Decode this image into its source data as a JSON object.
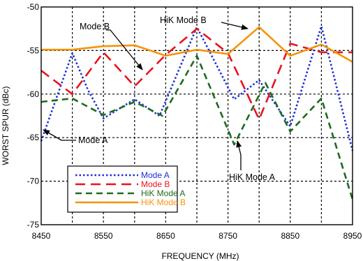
{
  "chart_data": {
    "type": "line",
    "title": "",
    "xlabel": "FREQUENCY (MHz)",
    "ylabel": "WORST SPUR (dBc)",
    "xlim": [
      8450,
      8950
    ],
    "ylim": [
      -75,
      -50
    ],
    "xticks": [
      8450,
      8550,
      8650,
      8750,
      8850,
      8950
    ],
    "yticks": [
      -50,
      -55,
      -60,
      -65,
      -70,
      -75
    ],
    "grid": true,
    "legend_position": "bottom-left",
    "series": [
      {
        "name": "Mode A",
        "color": "#1a2fd6",
        "dash": "dotted",
        "x": [
          8450,
          8500,
          8525,
          8550,
          8600,
          8640,
          8700,
          8760,
          8800,
          8850,
          8900,
          8950
        ],
        "y": [
          -65.4,
          -55.3,
          -59.5,
          -62.8,
          -60.6,
          -62.5,
          -52.3,
          -60.6,
          -58.4,
          -63.7,
          -52.2,
          -66.5
        ]
      },
      {
        "name": "Mode B",
        "color": "#e8141c",
        "dash": "dashed",
        "x": [
          8450,
          8500,
          8550,
          8600,
          8650,
          8700,
          8750,
          8800,
          8850,
          8900,
          8950
        ],
        "y": [
          -57.3,
          -60.0,
          -55.2,
          -59.1,
          -55.5,
          -52.5,
          -55.3,
          -62.9,
          -54.2,
          -55.2,
          -55.2
        ]
      },
      {
        "name": "HiK Mode A",
        "color": "#1e6b1e",
        "dash": "dashed",
        "x": [
          8450,
          8500,
          8550,
          8600,
          8645,
          8700,
          8760,
          8810,
          8850,
          8900,
          8950
        ],
        "y": [
          -60.9,
          -60.5,
          -62.4,
          -60.9,
          -62.5,
          -55.6,
          -65.8,
          -58.7,
          -64.3,
          -60.5,
          -72.1
        ]
      },
      {
        "name": "HiK Mode B",
        "color": "#f5930a",
        "dash": "solid",
        "x": [
          8450,
          8500,
          8550,
          8600,
          8650,
          8700,
          8750,
          8800,
          8850,
          8900,
          8950
        ],
        "y": [
          -54.9,
          -54.9,
          -54.5,
          -54.4,
          -55.6,
          -54.9,
          -55.4,
          -52.3,
          -55.6,
          -54.3,
          -56.3
        ]
      }
    ],
    "annotations": [
      {
        "text": "Mode B",
        "x": 8633,
        "y": -57.2
      },
      {
        "text": "HiK Mode B",
        "x": 8789,
        "y": -52.3
      },
      {
        "text": "Mode A",
        "x": 8454,
        "y": -64.6
      },
      {
        "text": "HiK Mode A",
        "x": 8762,
        "y": -64.6
      }
    ]
  }
}
